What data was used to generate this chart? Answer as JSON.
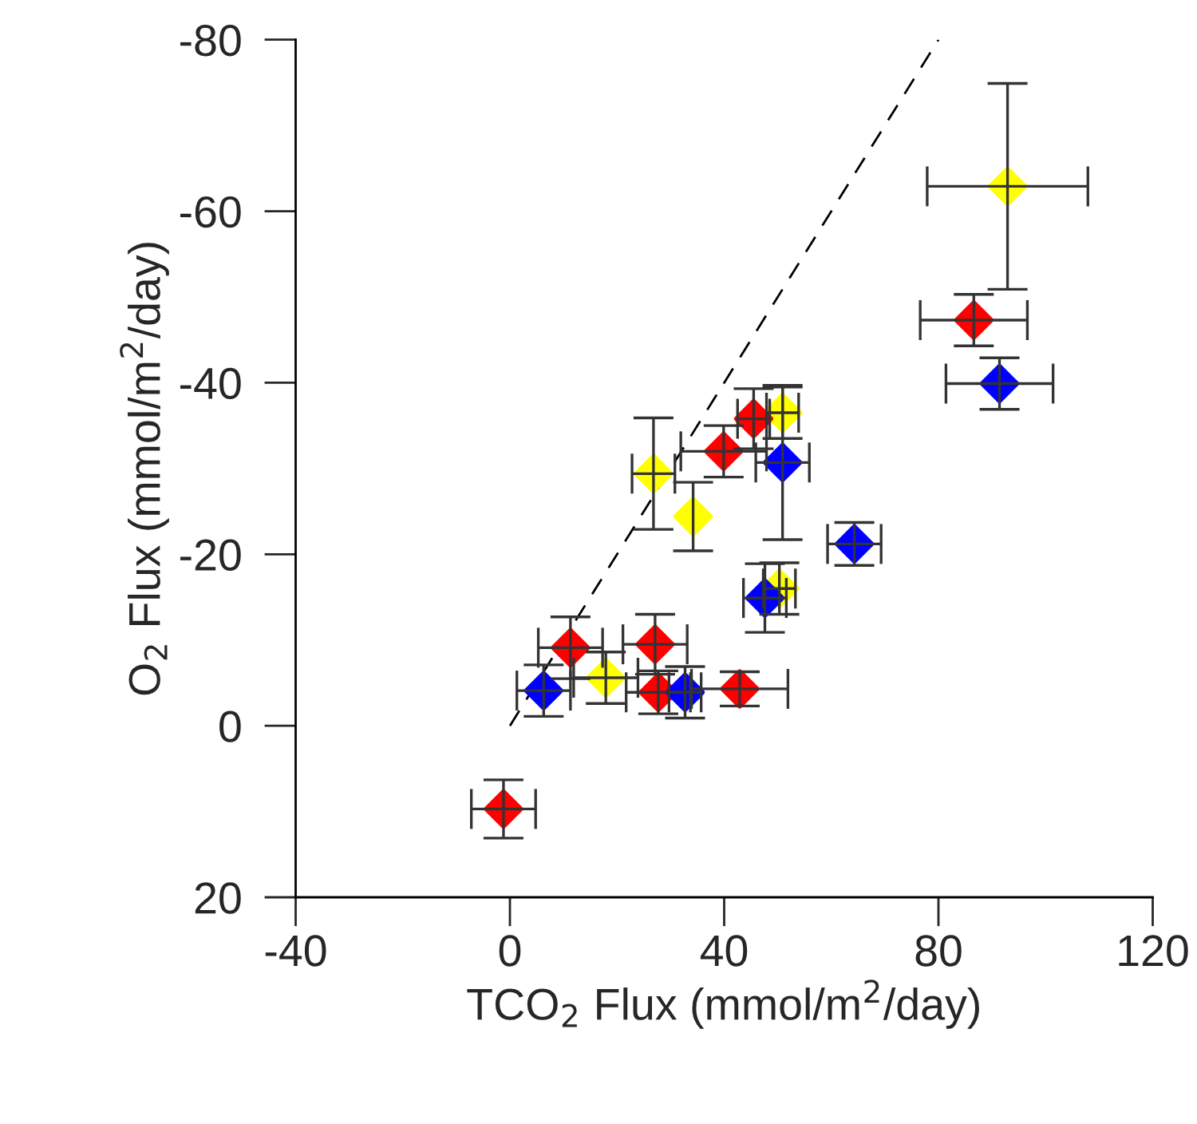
{
  "chart_data": {
    "type": "scatter",
    "xlabel": "TCO$_{2}$ Flux (mmol/m$^{2}$/day)",
    "ylabel": "O$_{2}$ Flux (mmol/m$^{2}$/day)",
    "xlim": [
      -40,
      120
    ],
    "ylim": [
      20,
      -80
    ],
    "xticks": [
      -40,
      0,
      40,
      80,
      120
    ],
    "yticks": [
      -80,
      -60,
      -40,
      -20,
      0,
      20
    ],
    "grid": false,
    "legend": false,
    "marker": "diamond",
    "series": [
      {
        "type": "line",
        "color": "#000000",
        "line_style": "dashed",
        "marker": "none",
        "x": [
          0,
          80
        ],
        "values": [
          0,
          -80
        ]
      },
      {
        "color": "#ffff00",
        "x": [
          92.9,
          26.8,
          34.2
        ],
        "values": [
          -62.9,
          -29.4,
          -24.4
        ],
        "errors": [
          12,
          6.5,
          4
        ],
        "xerrors": [
          15,
          4,
          null
        ]
      },
      {
        "color": "#ffff00",
        "x": [
          50.9,
          50.3,
          17.9
        ],
        "values": [
          -36.5,
          -16.0,
          -5.6
        ],
        "errors": [
          3,
          3,
          3
        ],
        "xerrors": [
          3,
          3,
          6
        ]
      },
      {
        "color": "#ff0000",
        "x": [
          39.9,
          86.6,
          27.1,
          27.7
        ],
        "values": [
          -32.0,
          -47.3,
          -9.5,
          -3.9
        ],
        "errors": [
          3,
          3,
          3.5,
          2.5
        ],
        "xerrors": [
          8,
          10,
          6,
          6
        ]
      },
      {
        "color": "#ff0000",
        "x": [
          45.5,
          11.3,
          42.9,
          -1.2
        ],
        "values": [
          -35.8,
          -9.1,
          -4.3,
          9.7
        ],
        "errors": [
          3.5,
          3.6,
          2,
          3.4
        ],
        "xerrors": [
          3,
          6,
          9,
          6
        ]
      },
      {
        "color": "#0000ff",
        "x": [
          50.9,
          64.3,
          6.3
        ],
        "values": [
          -30.7,
          -21.2,
          -4.1
        ],
        "errors": [
          9,
          2.5,
          3
        ],
        "xerrors": [
          5,
          5,
          5
        ]
      },
      {
        "color": "#0000ff",
        "x": [
          91.4,
          47.6,
          32.7
        ],
        "values": [
          -39.9,
          -14.9,
          -3.9
        ],
        "errors": [
          3,
          4,
          3
        ],
        "xerrors": [
          10,
          4,
          3
        ]
      }
    ]
  }
}
